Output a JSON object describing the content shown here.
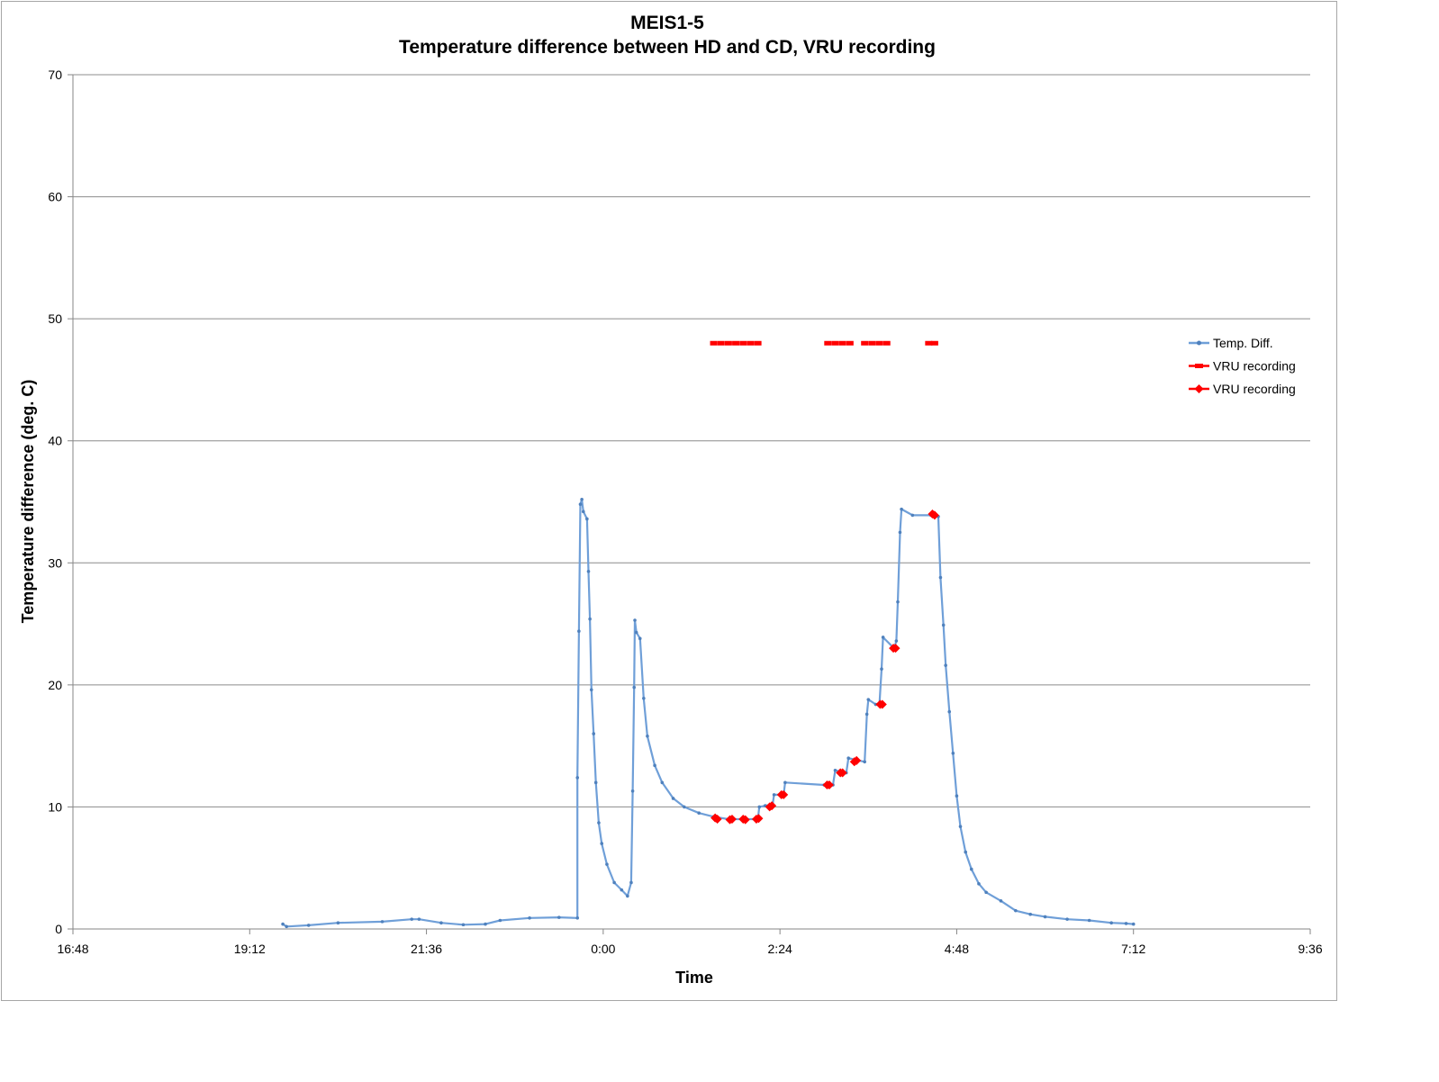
{
  "chart_data": {
    "type": "line",
    "title_line1": "MEIS1-5",
    "title_line2": "Temperature difference between HD and CD, VRU recording",
    "xlabel": "Time",
    "ylabel": "Temperature difference (deg. C)",
    "x_unit": "hours relative to 0:00",
    "xlim": [
      -7.2,
      9.6
    ],
    "ylim": [
      0,
      70
    ],
    "x_ticks": [
      {
        "value": -7.2,
        "label": "16:48"
      },
      {
        "value": -4.8,
        "label": "19:12"
      },
      {
        "value": -2.4,
        "label": "21:36"
      },
      {
        "value": 0.0,
        "label": "0:00"
      },
      {
        "value": 2.4,
        "label": "2:24"
      },
      {
        "value": 4.8,
        "label": "4:48"
      },
      {
        "value": 7.2,
        "label": "7:12"
      },
      {
        "value": 9.6,
        "label": "9:36"
      }
    ],
    "y_ticks": [
      0,
      10,
      20,
      30,
      40,
      50,
      60,
      70
    ],
    "grid": "horizontal",
    "legend_position": "right",
    "colors": {
      "temp": "#6f9fd8",
      "vru": "#ff0000",
      "grid": "#8c8c8c",
      "axis": "#868686"
    },
    "series": [
      {
        "name": "Temp. Diff.",
        "style": "line-with-small-markers",
        "points": [
          [
            -4.35,
            0.4
          ],
          [
            -4.3,
            0.2
          ],
          [
            -4.0,
            0.3
          ],
          [
            -3.6,
            0.5
          ],
          [
            -3.0,
            0.6
          ],
          [
            -2.6,
            0.8
          ],
          [
            -2.5,
            0.8
          ],
          [
            -2.2,
            0.5
          ],
          [
            -1.9,
            0.35
          ],
          [
            -1.6,
            0.4
          ],
          [
            -1.4,
            0.7
          ],
          [
            -1.0,
            0.9
          ],
          [
            -0.6,
            0.95
          ],
          [
            -0.35,
            0.9
          ],
          [
            -0.35,
            12.4
          ],
          [
            -0.33,
            24.4
          ],
          [
            -0.31,
            34.8
          ],
          [
            -0.29,
            35.2
          ],
          [
            -0.27,
            34.2
          ],
          [
            -0.22,
            33.6
          ],
          [
            -0.2,
            29.3
          ],
          [
            -0.18,
            25.4
          ],
          [
            -0.16,
            19.6
          ],
          [
            -0.13,
            16.0
          ],
          [
            -0.1,
            12.0
          ],
          [
            -0.06,
            8.7
          ],
          [
            -0.02,
            7.0
          ],
          [
            0.05,
            5.3
          ],
          [
            0.15,
            3.8
          ],
          [
            0.25,
            3.2
          ],
          [
            0.33,
            2.7
          ],
          [
            0.38,
            3.8
          ],
          [
            0.4,
            11.3
          ],
          [
            0.42,
            19.8
          ],
          [
            0.43,
            25.3
          ],
          [
            0.45,
            24.3
          ],
          [
            0.5,
            23.8
          ],
          [
            0.55,
            18.9
          ],
          [
            0.6,
            15.8
          ],
          [
            0.7,
            13.4
          ],
          [
            0.8,
            12.0
          ],
          [
            0.95,
            10.7
          ],
          [
            1.1,
            10.0
          ],
          [
            1.3,
            9.5
          ],
          [
            1.5,
            9.2
          ],
          [
            1.7,
            9.0
          ],
          [
            1.9,
            9.0
          ],
          [
            2.1,
            9.0
          ],
          [
            2.12,
            10.0
          ],
          [
            2.2,
            10.1
          ],
          [
            2.3,
            10.2
          ],
          [
            2.32,
            11.0
          ],
          [
            2.45,
            11.0
          ],
          [
            2.47,
            12.0
          ],
          [
            3.0,
            11.8
          ],
          [
            3.12,
            11.8
          ],
          [
            3.15,
            13.0
          ],
          [
            3.3,
            12.8
          ],
          [
            3.33,
            14.0
          ],
          [
            3.55,
            13.7
          ],
          [
            3.58,
            17.6
          ],
          [
            3.6,
            18.8
          ],
          [
            3.7,
            18.4
          ],
          [
            3.75,
            18.4
          ],
          [
            3.78,
            21.3
          ],
          [
            3.8,
            23.9
          ],
          [
            3.95,
            23.0
          ],
          [
            3.98,
            23.6
          ],
          [
            4.0,
            26.8
          ],
          [
            4.03,
            32.5
          ],
          [
            4.05,
            34.4
          ],
          [
            4.2,
            33.9
          ],
          [
            4.45,
            33.9
          ],
          [
            4.55,
            33.8
          ],
          [
            4.58,
            28.8
          ],
          [
            4.62,
            24.9
          ],
          [
            4.65,
            21.6
          ],
          [
            4.7,
            17.8
          ],
          [
            4.75,
            14.4
          ],
          [
            4.8,
            10.9
          ],
          [
            4.85,
            8.4
          ],
          [
            4.92,
            6.3
          ],
          [
            5.0,
            4.9
          ],
          [
            5.1,
            3.7
          ],
          [
            5.2,
            3.0
          ],
          [
            5.4,
            2.3
          ],
          [
            5.6,
            1.5
          ],
          [
            5.8,
            1.2
          ],
          [
            6.0,
            1.0
          ],
          [
            6.3,
            0.8
          ],
          [
            6.6,
            0.7
          ],
          [
            6.9,
            0.5
          ],
          [
            7.1,
            0.45
          ],
          [
            7.2,
            0.4
          ]
        ]
      },
      {
        "name": "VRU recording",
        "style": "red-dashes",
        "points": [
          [
            1.5,
            48
          ],
          [
            1.6,
            48
          ],
          [
            1.7,
            48
          ],
          [
            1.8,
            48
          ],
          [
            1.9,
            48
          ],
          [
            2.0,
            48
          ],
          [
            2.1,
            48
          ],
          [
            3.05,
            48
          ],
          [
            3.15,
            48
          ],
          [
            3.25,
            48
          ],
          [
            3.35,
            48
          ],
          [
            3.55,
            48
          ],
          [
            3.65,
            48
          ],
          [
            3.75,
            48
          ],
          [
            3.85,
            48
          ],
          [
            4.42,
            48
          ],
          [
            4.5,
            48
          ]
        ]
      },
      {
        "name": "VRU recording",
        "style": "red-diamond-markers",
        "points": [
          [
            1.52,
            9.1
          ],
          [
            1.55,
            9.0
          ],
          [
            1.72,
            8.95
          ],
          [
            1.75,
            9.0
          ],
          [
            1.9,
            9.0
          ],
          [
            1.93,
            8.95
          ],
          [
            2.08,
            9.0
          ],
          [
            2.11,
            9.05
          ],
          [
            2.26,
            10.0
          ],
          [
            2.29,
            10.1
          ],
          [
            2.42,
            11.0
          ],
          [
            2.45,
            11.0
          ],
          [
            3.04,
            11.8
          ],
          [
            3.07,
            11.8
          ],
          [
            3.22,
            12.8
          ],
          [
            3.25,
            12.8
          ],
          [
            3.41,
            13.7
          ],
          [
            3.44,
            13.8
          ],
          [
            3.76,
            18.4
          ],
          [
            3.79,
            18.4
          ],
          [
            3.94,
            23.0
          ],
          [
            3.97,
            23.0
          ],
          [
            4.47,
            34.0
          ],
          [
            4.5,
            33.9
          ]
        ]
      }
    ]
  }
}
